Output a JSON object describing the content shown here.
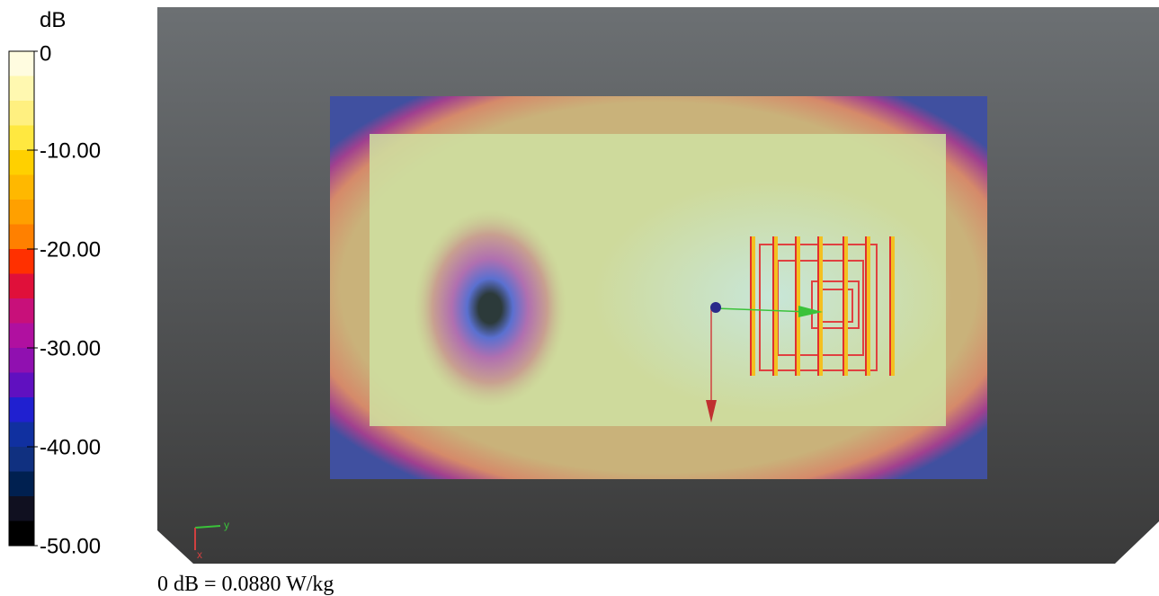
{
  "colorbar": {
    "unit": "dB",
    "ticks": [
      "0",
      "-10.00",
      "-20.00",
      "-30.00",
      "-40.00",
      "-50.00"
    ],
    "colors": [
      "#fffce0",
      "#fff8b0",
      "#fff080",
      "#ffe840",
      "#ffd000",
      "#ffb800",
      "#ffa000",
      "#ff8000",
      "#ff3000",
      "#e0103a",
      "#c8107a",
      "#b010a0",
      "#9010b0",
      "#6010c0",
      "#2020d0",
      "#1030a0",
      "#103080",
      "#002050",
      "#101020",
      "#000000"
    ]
  },
  "triad": {
    "y": "y",
    "x": "x"
  },
  "footnote": "0 dB = 0.0880 W/kg"
}
